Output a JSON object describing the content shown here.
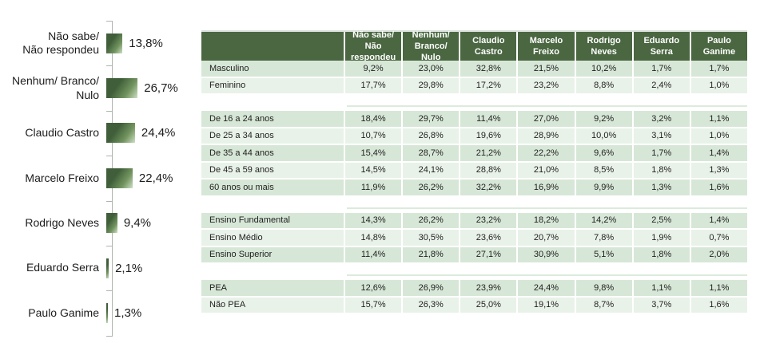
{
  "colors": {
    "header_bg": "#4a6741",
    "header_text": "#ffffff",
    "row_green": "#d7e7d7",
    "row_light": "#e9f2e9",
    "bar_dark": "#3f5e39",
    "bar_light": "#cfe0c5",
    "axis": "#aeb4ae",
    "text": "#1c1c1c"
  },
  "chart_data": [
    {
      "type": "bar",
      "orientation": "horizontal",
      "title": "",
      "categories": [
        "Não sabe/ Não respondeu",
        "Nenhum/ Branco/ Nulo",
        "Claudio Castro",
        "Marcelo Freixo",
        "Rodrigo Neves",
        "Eduardo Serra",
        "Paulo Ganime"
      ],
      "display_labels": [
        "Não sabe/\nNão respondeu",
        "Nenhum/ Branco/\nNulo",
        "Claudio Castro",
        "Marcelo Freixo",
        "Rodrigo Neves",
        "Eduardo Serra",
        "Paulo Ganime"
      ],
      "values": [
        13.8,
        26.7,
        24.4,
        22.4,
        9.4,
        2.1,
        1.3
      ],
      "value_labels": [
        "13,8%",
        "26,7%",
        "24,4%",
        "22,4%",
        "9,4%",
        "2,1%",
        "1,3%"
      ],
      "xlim": [
        0,
        30
      ],
      "grid": false,
      "legend": false
    },
    {
      "type": "table",
      "header": [
        "",
        "Não sabe/ Não respondeu",
        "Nenhum/ Branco/ Nulo",
        "Claudio Castro",
        "Marcelo Freixo",
        "Rodrigo Neves",
        "Eduardo Serra",
        "Paulo Ganime"
      ],
      "sections": [
        {
          "rows": [
            {
              "label": "Masculino",
              "values": [
                "9,2%",
                "23,0%",
                "32,8%",
                "21,5%",
                "10,2%",
                "1,7%",
                "1,7%"
              ]
            },
            {
              "label": "Feminino",
              "values": [
                "17,7%",
                "29,8%",
                "17,2%",
                "23,2%",
                "8,8%",
                "2,4%",
                "1,0%"
              ]
            }
          ]
        },
        {
          "rows": [
            {
              "label": "De 16 a 24 anos",
              "values": [
                "18,4%",
                "29,7%",
                "11,4%",
                "27,0%",
                "9,2%",
                "3,2%",
                "1,1%"
              ]
            },
            {
              "label": "De 25 a 34 anos",
              "values": [
                "10,7%",
                "26,8%",
                "19,6%",
                "28,9%",
                "10,0%",
                "3,1%",
                "1,0%"
              ]
            },
            {
              "label": "De 35 a 44 anos",
              "values": [
                "15,4%",
                "28,7%",
                "21,2%",
                "22,2%",
                "9,6%",
                "1,7%",
                "1,4%"
              ]
            },
            {
              "label": "De 45 a 59 anos",
              "values": [
                "14,5%",
                "24,1%",
                "28,8%",
                "21,0%",
                "8,5%",
                "1,8%",
                "1,3%"
              ]
            },
            {
              "label": "60 anos ou mais",
              "values": [
                "11,9%",
                "26,2%",
                "32,2%",
                "16,9%",
                "9,9%",
                "1,3%",
                "1,6%"
              ]
            }
          ]
        },
        {
          "rows": [
            {
              "label": "Ensino Fundamental",
              "values": [
                "14,3%",
                "26,2%",
                "23,2%",
                "18,2%",
                "14,2%",
                "2,5%",
                "1,4%"
              ]
            },
            {
              "label": "Ensino Médio",
              "values": [
                "14,8%",
                "30,5%",
                "23,6%",
                "20,7%",
                "7,8%",
                "1,9%",
                "0,7%"
              ]
            },
            {
              "label": "Ensino Superior",
              "values": [
                "11,4%",
                "21,8%",
                "27,1%",
                "30,9%",
                "5,1%",
                "1,8%",
                "2,0%"
              ]
            }
          ]
        },
        {
          "rows": [
            {
              "label": "PEA",
              "values": [
                "12,6%",
                "26,9%",
                "23,9%",
                "24,4%",
                "9,8%",
                "1,1%",
                "1,1%"
              ]
            },
            {
              "label": "Não PEA",
              "values": [
                "15,7%",
                "26,3%",
                "25,0%",
                "19,1%",
                "8,7%",
                "3,7%",
                "1,6%"
              ]
            }
          ]
        }
      ]
    }
  ]
}
